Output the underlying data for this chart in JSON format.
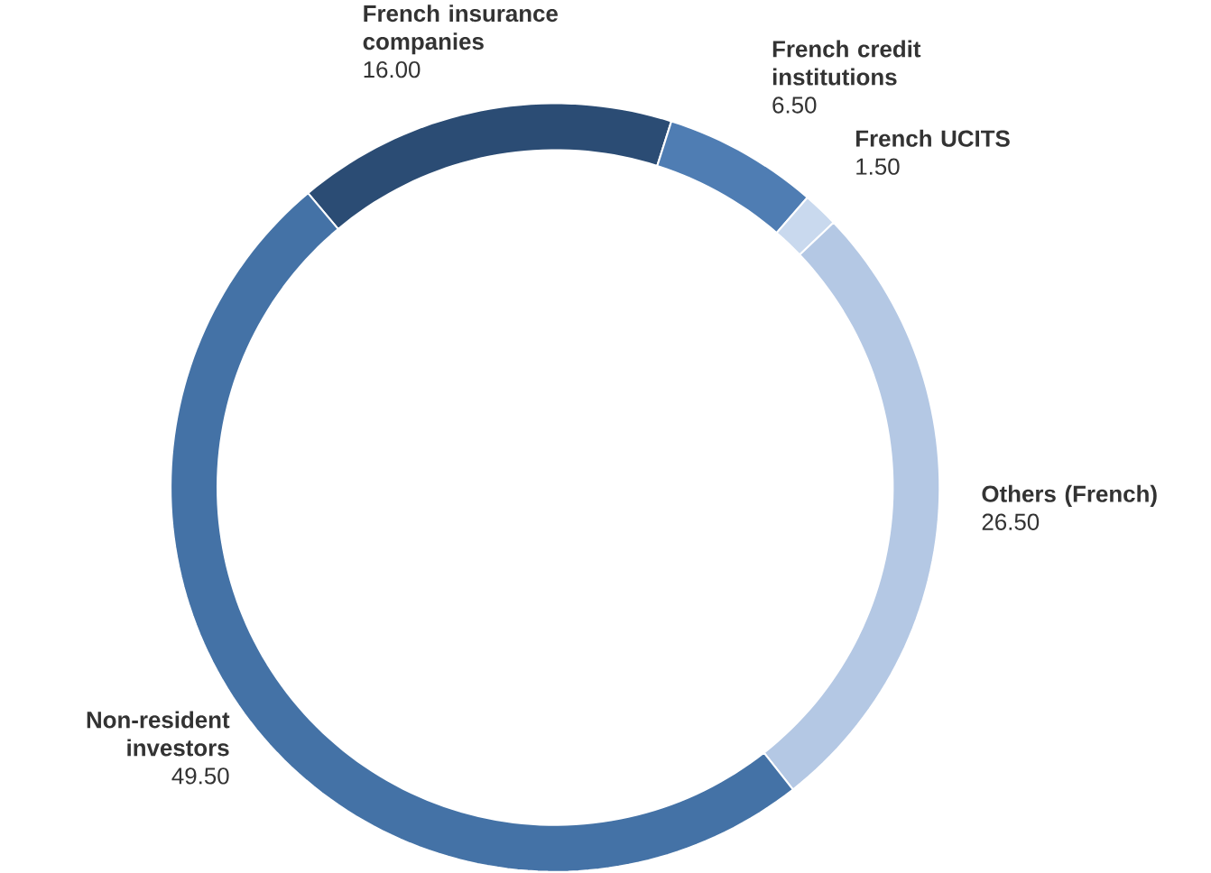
{
  "chart_data": {
    "type": "donut",
    "categories": [
      "French insurance companies",
      "French credit institutions",
      "French UCITS",
      "Others (French)",
      "Non-resident investors"
    ],
    "values": [
      16,
      6.5,
      1.5,
      26.5,
      49.5
    ],
    "value_labels": [
      "16.00",
      "6.50",
      "1.50",
      "26.50",
      "49.50"
    ],
    "colors": [
      "#2b4c74",
      "#4f7db3",
      "#c9d9ee",
      "#b4c8e4",
      "#4472a6"
    ]
  }
}
